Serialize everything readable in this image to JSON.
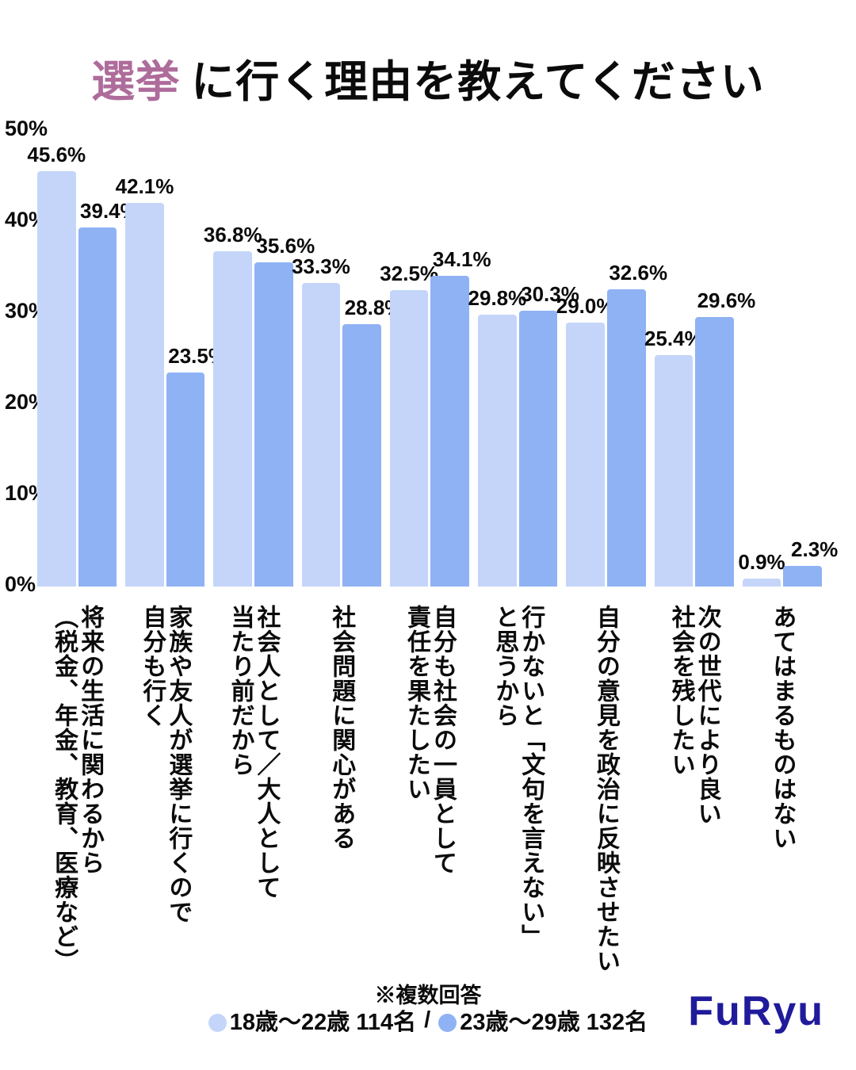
{
  "title": {
    "accent": "選挙",
    "rest": "に行く理由を教えてください"
  },
  "colors": {
    "accent": "#ae6c9b",
    "series1": "#c4d5f9",
    "series2": "#8fb2f4",
    "text": "#0b0b0b",
    "logo": "#201b9b"
  },
  "chart_data": {
    "type": "bar",
    "title": "選挙に行く理由を教えてください",
    "xlabel": "",
    "ylabel": "",
    "ylim": [
      0,
      50
    ],
    "yticks": [
      "50%",
      "40%",
      "30%",
      "20%",
      "10%",
      "0%"
    ],
    "grid": false,
    "legend_position": "bottom",
    "value_suffix": "%",
    "categories": [
      "将来の生活に関わるから（税金、年金、教育、医療など）",
      "家族や友人が選挙に行くので自分も行く",
      "社会人として／大人として当たり前だから",
      "社会問題に関心がある",
      "自分も社会の一員として責任を果たしたい",
      "行かないと「文句を言えない」と思うから",
      "自分の意見を政治に反映させたい",
      "次の世代により良い社会を残したい",
      "あてはまるものはない"
    ],
    "category_lines": [
      [
        "将来の生活に関わるから",
        "（税金、年金、教育、医療など）"
      ],
      [
        "家族や友人が選挙に行くので",
        "自分も行く"
      ],
      [
        "社会人として／大人として",
        "当たり前だから"
      ],
      [
        "社会問題に関心がある"
      ],
      [
        "自分も社会の一員として",
        "責任を果たしたい"
      ],
      [
        "行かないと「文句を言えない」",
        "と思うから"
      ],
      [
        "自分の意見を政治に反映させたい"
      ],
      [
        "次の世代により良い",
        "社会を残したい"
      ],
      [
        "あてはまるものはない"
      ]
    ],
    "series": [
      {
        "name": "18歳～22歳 114名",
        "color": "#c4d5f9",
        "values": [
          45.6,
          42.1,
          36.8,
          33.3,
          32.5,
          29.8,
          29.0,
          25.4,
          0.9
        ]
      },
      {
        "name": "23歳～29歳 132名",
        "color": "#8fb2f4",
        "values": [
          39.4,
          23.5,
          35.6,
          28.8,
          34.1,
          30.3,
          32.6,
          29.6,
          2.3
        ]
      }
    ]
  },
  "footer": {
    "note": "※複数回答",
    "legend_separator": "/",
    "legend": [
      {
        "label": "18歳～22歳 114名"
      },
      {
        "label": "23歳～29歳 132名"
      }
    ],
    "logo": "FuRyu"
  }
}
